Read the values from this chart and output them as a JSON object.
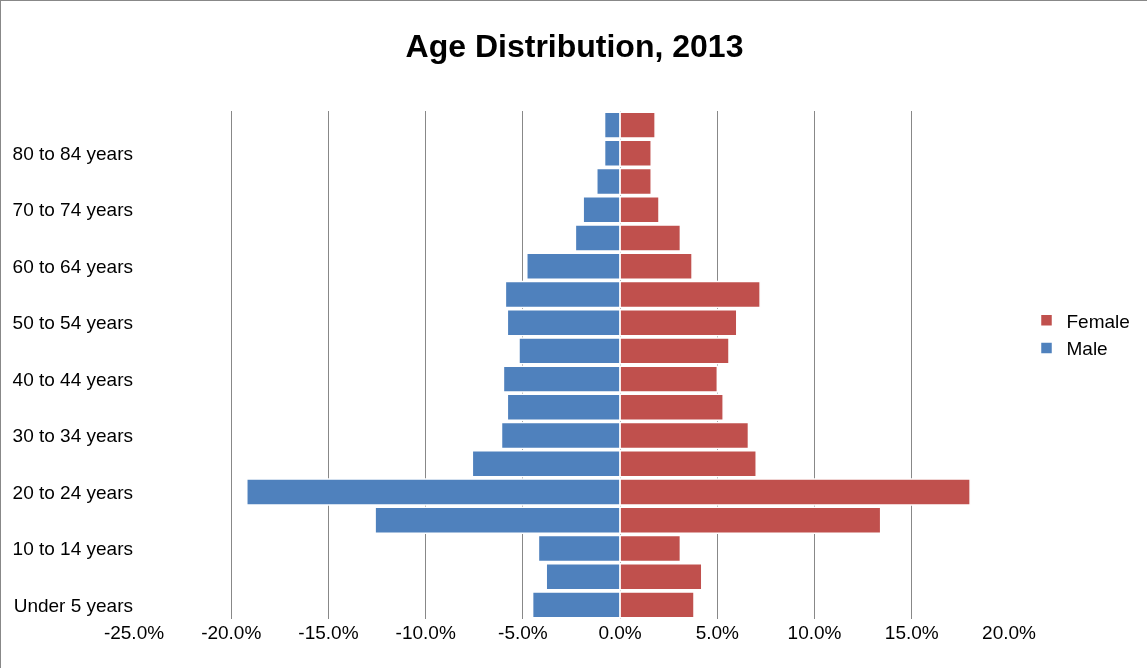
{
  "chart_data": {
    "type": "bar",
    "orientation": "horizontal",
    "stacked": true,
    "title": "Age Distribution, 2013",
    "categories": [
      null,
      "80 to 84 years",
      null,
      "70 to 74 years",
      null,
      "60 to 64 years",
      null,
      "50 to 54 years",
      null,
      "40 to 44 years",
      null,
      "30 to 34 years",
      null,
      "20 to 24 years",
      null,
      "10 to 14 years",
      null,
      "Under 5 years"
    ],
    "series": [
      {
        "name": "Male",
        "color": "#4f81bd",
        "values": [
          -0.8,
          -0.8,
          -1.2,
          -1.9,
          -2.3,
          -4.8,
          -5.9,
          -5.8,
          -5.2,
          -6.0,
          -5.8,
          -6.1,
          -7.6,
          -19.2,
          -12.6,
          -4.2,
          -3.8,
          -4.5
        ]
      },
      {
        "name": "Female",
        "color": "#c0504d",
        "values": [
          1.8,
          1.6,
          1.6,
          2.0,
          3.1,
          3.7,
          7.2,
          6.0,
          5.6,
          5.0,
          5.3,
          6.6,
          7.0,
          18.0,
          13.4,
          3.1,
          4.2,
          3.8
        ]
      }
    ],
    "xlim": [
      -25,
      20
    ],
    "xticks": [
      {
        "value": -25,
        "label": "-25.0%"
      },
      {
        "value": -20,
        "label": "-20.0%"
      },
      {
        "value": -15,
        "label": "-15.0%"
      },
      {
        "value": -10,
        "label": "-10.0%"
      },
      {
        "value": -5,
        "label": "-5.0%"
      },
      {
        "value": 0,
        "label": "0.0%"
      },
      {
        "value": 5,
        "label": "5.0%"
      },
      {
        "value": 10,
        "label": "10.0%"
      },
      {
        "value": 15,
        "label": "15.0%"
      },
      {
        "value": 20,
        "label": "20.0%"
      }
    ],
    "grid": "x",
    "legend": "right"
  }
}
